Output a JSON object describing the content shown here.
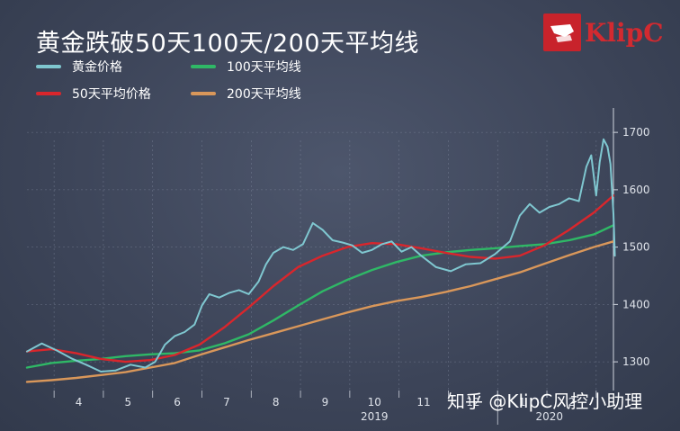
{
  "title": "黄金跌破50天100天/200天平均线",
  "legend": [
    {
      "label": "黄金价格",
      "color": "#7fc7d0"
    },
    {
      "label": "100天平均线",
      "color": "#2fb866"
    },
    {
      "label": "50天平均价格",
      "color": "#d9262c"
    },
    {
      "label": "200天平均线",
      "color": "#d9975a"
    }
  ],
  "logo": {
    "text": "KlipC"
  },
  "watermark": "知乎 @KlipC风控小助理",
  "chart_data": {
    "type": "line",
    "title": "黄金跌破50天100天/200天平均线",
    "x_ticks": [
      "4",
      "5",
      "6",
      "7",
      "8",
      "9",
      "10",
      "11",
      "12",
      "1",
      "2"
    ],
    "x_year_labels": [
      "2019",
      "2020"
    ],
    "y_ticks": [
      1300,
      1400,
      1500,
      1600,
      1700
    ],
    "ylim": [
      1250,
      1730
    ],
    "xlim": [
      0,
      11.9
    ],
    "grid": true,
    "y_axis_side": "right",
    "legend_position": "top-left",
    "series": [
      {
        "name": "黄金价格",
        "color": "#7fc7d0",
        "points": [
          [
            0,
            1318
          ],
          [
            0.3,
            1332
          ],
          [
            0.6,
            1320
          ],
          [
            0.9,
            1306
          ],
          [
            1.2,
            1295
          ],
          [
            1.5,
            1283
          ],
          [
            1.8,
            1285
          ],
          [
            2.1,
            1295
          ],
          [
            2.4,
            1290
          ],
          [
            2.6,
            1300
          ],
          [
            2.8,
            1330
          ],
          [
            3.0,
            1345
          ],
          [
            3.2,
            1352
          ],
          [
            3.4,
            1365
          ],
          [
            3.55,
            1398
          ],
          [
            3.7,
            1418
          ],
          [
            3.9,
            1412
          ],
          [
            4.1,
            1420
          ],
          [
            4.3,
            1425
          ],
          [
            4.5,
            1418
          ],
          [
            4.7,
            1440
          ],
          [
            4.85,
            1470
          ],
          [
            5.0,
            1490
          ],
          [
            5.2,
            1500
          ],
          [
            5.4,
            1495
          ],
          [
            5.6,
            1505
          ],
          [
            5.8,
            1542
          ],
          [
            6.0,
            1530
          ],
          [
            6.2,
            1512
          ],
          [
            6.4,
            1508
          ],
          [
            6.6,
            1503
          ],
          [
            6.8,
            1490
          ],
          [
            7.0,
            1495
          ],
          [
            7.2,
            1505
          ],
          [
            7.4,
            1510
          ],
          [
            7.6,
            1492
          ],
          [
            7.8,
            1500
          ],
          [
            8.0,
            1485
          ],
          [
            8.3,
            1465
          ],
          [
            8.6,
            1458
          ],
          [
            8.9,
            1470
          ],
          [
            9.2,
            1472
          ],
          [
            9.5,
            1488
          ],
          [
            9.8,
            1510
          ],
          [
            10.0,
            1555
          ],
          [
            10.2,
            1575
          ],
          [
            10.4,
            1560
          ],
          [
            10.6,
            1570
          ],
          [
            10.8,
            1575
          ],
          [
            11.0,
            1585
          ],
          [
            11.2,
            1580
          ],
          [
            11.35,
            1640
          ],
          [
            11.45,
            1660
          ],
          [
            11.55,
            1590
          ],
          [
            11.62,
            1648
          ],
          [
            11.7,
            1688
          ],
          [
            11.78,
            1675
          ],
          [
            11.84,
            1645
          ],
          [
            11.9,
            1558
          ],
          [
            11.93,
            1485
          ]
        ]
      },
      {
        "name": "100天平均线",
        "color": "#2fb866",
        "points": [
          [
            0,
            1290
          ],
          [
            0.5,
            1298
          ],
          [
            1.0,
            1302
          ],
          [
            1.5,
            1305
          ],
          [
            2.0,
            1310
          ],
          [
            2.5,
            1313
          ],
          [
            3.0,
            1315
          ],
          [
            3.5,
            1320
          ],
          [
            4.0,
            1332
          ],
          [
            4.5,
            1348
          ],
          [
            5.0,
            1372
          ],
          [
            5.5,
            1398
          ],
          [
            6.0,
            1423
          ],
          [
            6.5,
            1443
          ],
          [
            7.0,
            1460
          ],
          [
            7.5,
            1474
          ],
          [
            8.0,
            1485
          ],
          [
            8.5,
            1491
          ],
          [
            9.0,
            1495
          ],
          [
            9.5,
            1498
          ],
          [
            10.0,
            1502
          ],
          [
            10.5,
            1505
          ],
          [
            11.0,
            1512
          ],
          [
            11.5,
            1522
          ],
          [
            11.9,
            1538
          ]
        ]
      },
      {
        "name": "50天平均价格",
        "color": "#d9262c",
        "points": [
          [
            0,
            1318
          ],
          [
            0.5,
            1322
          ],
          [
            1.0,
            1315
          ],
          [
            1.5,
            1305
          ],
          [
            2.0,
            1300
          ],
          [
            2.5,
            1303
          ],
          [
            3.0,
            1312
          ],
          [
            3.5,
            1330
          ],
          [
            4.0,
            1360
          ],
          [
            4.5,
            1395
          ],
          [
            5.0,
            1432
          ],
          [
            5.5,
            1465
          ],
          [
            6.0,
            1485
          ],
          [
            6.5,
            1500
          ],
          [
            7.0,
            1507
          ],
          [
            7.5,
            1505
          ],
          [
            8.0,
            1498
          ],
          [
            8.5,
            1490
          ],
          [
            9.0,
            1483
          ],
          [
            9.5,
            1480
          ],
          [
            10.0,
            1485
          ],
          [
            10.5,
            1503
          ],
          [
            11.0,
            1530
          ],
          [
            11.5,
            1560
          ],
          [
            11.9,
            1590
          ]
        ]
      },
      {
        "name": "200天平均线",
        "color": "#d9975a",
        "points": [
          [
            0,
            1265
          ],
          [
            0.5,
            1268
          ],
          [
            1.0,
            1272
          ],
          [
            1.5,
            1277
          ],
          [
            2.0,
            1282
          ],
          [
            2.5,
            1290
          ],
          [
            3.0,
            1298
          ],
          [
            3.5,
            1312
          ],
          [
            4.0,
            1325
          ],
          [
            4.5,
            1338
          ],
          [
            5.0,
            1350
          ],
          [
            5.5,
            1362
          ],
          [
            6.0,
            1374
          ],
          [
            6.5,
            1386
          ],
          [
            7.0,
            1397
          ],
          [
            7.5,
            1406
          ],
          [
            8.0,
            1413
          ],
          [
            8.5,
            1422
          ],
          [
            9.0,
            1432
          ],
          [
            9.5,
            1444
          ],
          [
            10.0,
            1456
          ],
          [
            10.5,
            1471
          ],
          [
            11.0,
            1486
          ],
          [
            11.5,
            1500
          ],
          [
            11.9,
            1510
          ]
        ]
      }
    ]
  }
}
